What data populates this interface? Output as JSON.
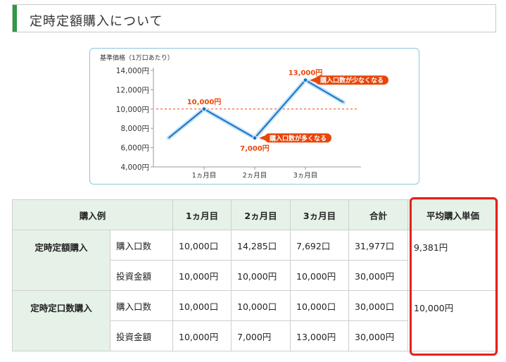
{
  "page": {
    "title": "定時定額購入について"
  },
  "chart_data": {
    "type": "line",
    "ylabel": "基準価格（1万口あたり）",
    "yticks": [
      "14,000円",
      "12,000円",
      "10,000円",
      "8,000円",
      "6,000円",
      "4,000円"
    ],
    "ytick_values": [
      14000,
      12000,
      10000,
      8000,
      6000,
      4000
    ],
    "ylim": [
      4000,
      14000
    ],
    "categories": [
      "1ヵ月目",
      "2ヵ月目",
      "3ヵ月目"
    ],
    "x": [
      0.3,
      1,
      2,
      3,
      3.75
    ],
    "values": [
      7000,
      10000,
      7000,
      13000,
      10700
    ],
    "reference_line": 10000,
    "point_labels": [
      "10,000円",
      "7,000円",
      "13,000円"
    ],
    "callouts": [
      "購入口数が多くなる",
      "購入口数が少なくなる"
    ],
    "colors": {
      "line": "#1a73c9",
      "label": "#e8460a",
      "reference": "#e8460a",
      "callout_bg": "#e8460a"
    }
  },
  "table": {
    "header": [
      "購入例",
      "1ヵ月目",
      "2ヵ月目",
      "3ヵ月目",
      "合計",
      "平均購入単価"
    ],
    "groups": [
      {
        "name": "定時定額購入",
        "rows": [
          {
            "label": "購入口数",
            "cells": [
              "10,000口",
              "14,285口",
              "7,692口",
              "31,977口"
            ]
          },
          {
            "label": "投資金額",
            "cells": [
              "10,000円",
              "10,000円",
              "10,000円",
              "30,000円"
            ]
          }
        ],
        "average": "9,381円"
      },
      {
        "name": "定時定口数購入",
        "rows": [
          {
            "label": "購入口数",
            "cells": [
              "10,000口",
              "10,000口",
              "10,000口",
              "30,000口"
            ]
          },
          {
            "label": "投資金額",
            "cells": [
              "10,000円",
              "7,000円",
              "13,000円",
              "30,000円"
            ]
          }
        ],
        "average": "10,000円"
      }
    ],
    "highlight_color": "#e2231a"
  }
}
